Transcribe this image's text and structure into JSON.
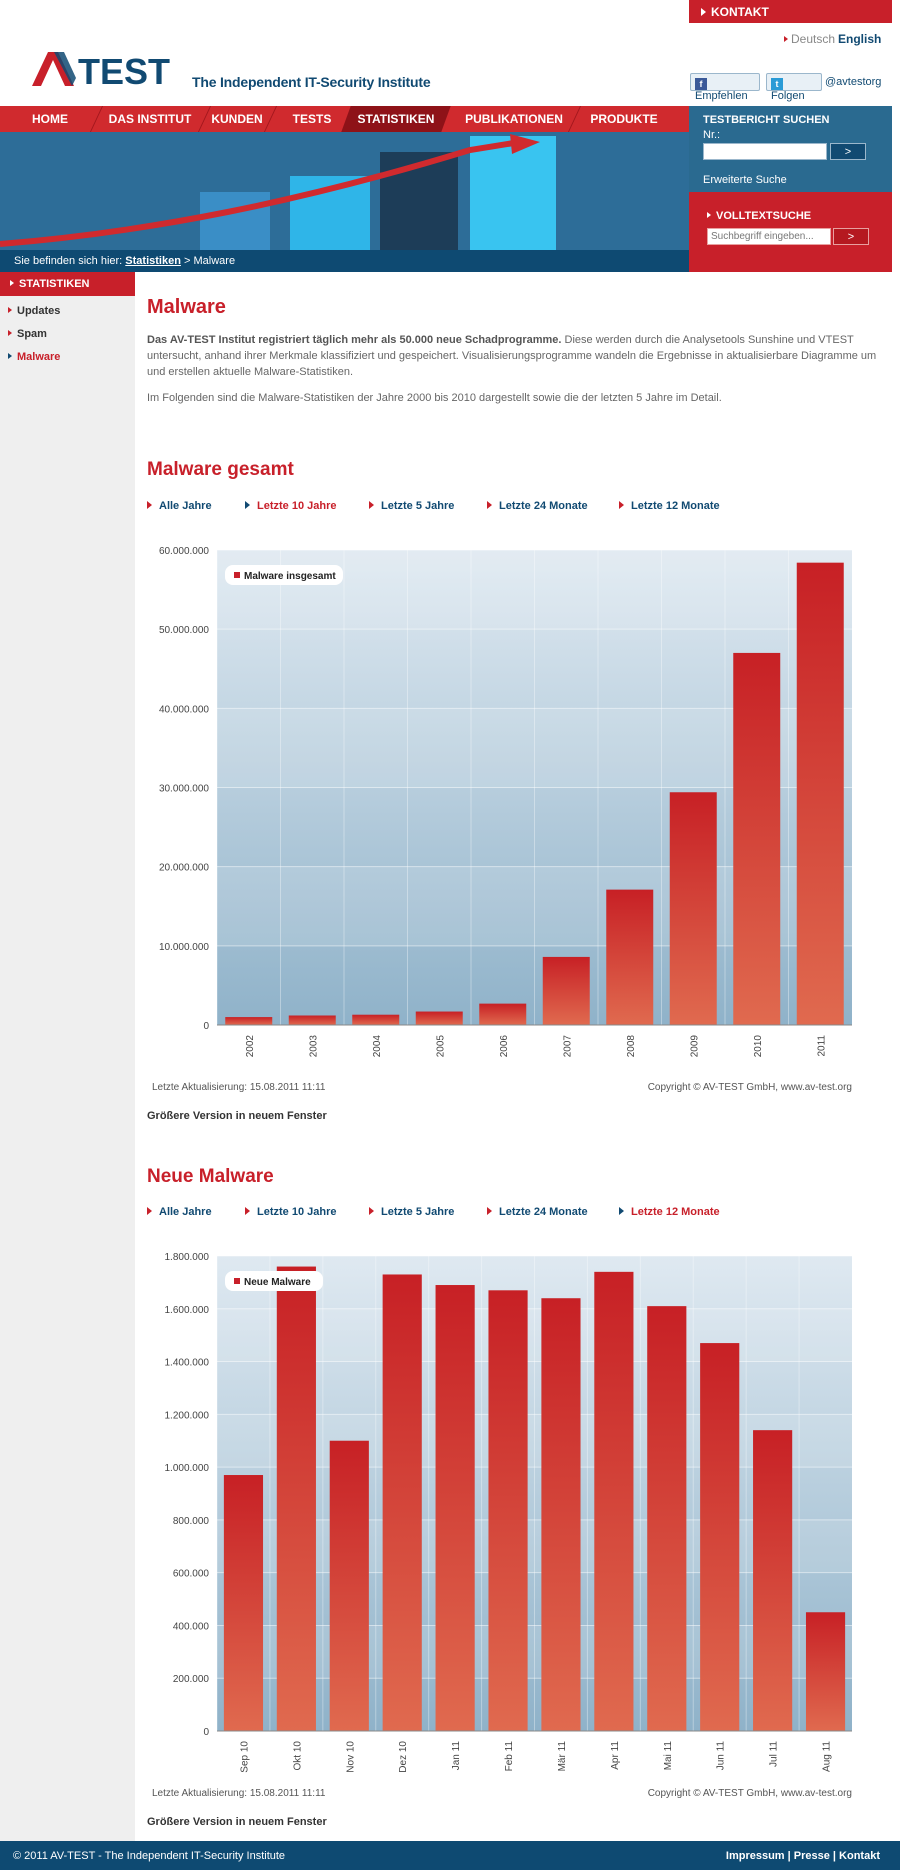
{
  "header": {
    "kontakt": "KONTAKT",
    "lang_de": "Deutsch",
    "lang_en": "English",
    "logo_text": "AV-TEST",
    "tagline": "The Independent IT-Security Institute",
    "facebook_label": "Empfehlen",
    "twitter_label": "Folgen",
    "twitter_handle": "@avtestorg"
  },
  "nav": {
    "items": [
      "HOME",
      "DAS INSTITUT",
      "KUNDEN",
      "TESTS",
      "STATISTIKEN",
      "PUBLIKATIONEN",
      "PRODUKTE"
    ],
    "active": "STATISTIKEN"
  },
  "breadcrumb": {
    "prefix": "Sie befinden sich hier:",
    "link": "Statistiken",
    "separator": ">",
    "current": "Malware"
  },
  "search_report": {
    "title": "TESTBERICHT SUCHEN",
    "nr_label": "Nr.:",
    "button": ">",
    "advanced": "Erweiterte Suche"
  },
  "search_fulltext": {
    "title": "VOLLTEXTSUCHE",
    "placeholder": "Suchbegriff eingeben...",
    "button": ">"
  },
  "sidebar": {
    "title": "STATISTIKEN",
    "items": [
      "Updates",
      "Spam",
      "Malware"
    ],
    "active": "Malware"
  },
  "main": {
    "title": "Malware",
    "intro_bold": "Das AV-TEST Institut registriert täglich mehr als 50.000 neue Schadprogramme.",
    "intro_rest": " Diese werden durch die Analysetools Sunshine und VTEST untersucht, anhand ihrer Merkmale klassifiziert und gespeichert. Visualisierungsprogramme wandeln die Ergebnisse in aktualisierbare Diagramme um und erstellen aktuelle Malware-Statistiken.",
    "intro2": "Im Folgenden sind die Malware-Statistiken der Jahre 2000 bis 2010 dargestellt sowie die der letzten 5 Jahre im Detail.",
    "section1_title": "Malware gesamt",
    "section1_ranges": [
      "Alle Jahre",
      "Letzte 10 Jahre",
      "Letzte 5 Jahre",
      "Letzte 24 Monate",
      "Letzte 12 Monate"
    ],
    "section1_selected": "Letzte 10 Jahre",
    "section2_title": "Neue Malware",
    "section2_ranges": [
      "Alle Jahre",
      "Letzte 10 Jahre",
      "Letzte 5 Jahre",
      "Letzte 24 Monate",
      "Letzte 12 Monate"
    ],
    "section2_selected": "Letzte 12 Monate",
    "last_update": "Letzte Aktualisierung: 15.08.2011 11:11",
    "copyright": "Copyright © AV-TEST GmbH, www.av-test.org",
    "bigger_version": "Größere Version in neuem Fenster"
  },
  "footer": {
    "copyright": "© 2011 AV-TEST - The Independent IT-Security Institute",
    "links": "Impressum | Presse | Kontakt"
  },
  "colors": {
    "brand_red": "#c8202a",
    "brand_blue": "#114a72"
  },
  "chart_data": [
    {
      "type": "bar",
      "legend": "Malware insgesamt",
      "categories": [
        "2002",
        "2003",
        "2004",
        "2005",
        "2006",
        "2007",
        "2008",
        "2009",
        "2010",
        "2011"
      ],
      "series": [
        {
          "name": "Malware insgesamt",
          "values": [
            1000000,
            1200000,
            1300000,
            1700000,
            2700000,
            8600000,
            17100000,
            29400000,
            47000000,
            58400000
          ]
        }
      ],
      "ylim": [
        0,
        60000000
      ],
      "yticks": [
        "0",
        "10.000.000",
        "20.000.000",
        "30.000.000",
        "40.000.000",
        "50.000.000",
        "60.000.000"
      ],
      "legend_position": "top-left"
    },
    {
      "type": "bar",
      "legend": "Neue Malware",
      "categories": [
        "Sep 10",
        "Okt 10",
        "Nov 10",
        "Dez 10",
        "Jan 11",
        "Feb 11",
        "Mär 11",
        "Apr 11",
        "Mai 11",
        "Jun 11",
        "Jul 11",
        "Aug 11"
      ],
      "series": [
        {
          "name": "Neue Malware",
          "values": [
            970000,
            1760000,
            1100000,
            1730000,
            1690000,
            1670000,
            1640000,
            1740000,
            1610000,
            1470000,
            1140000,
            450000
          ]
        }
      ],
      "ylim": [
        0,
        1800000
      ],
      "yticks": [
        "0",
        "200.000",
        "400.000",
        "600.000",
        "800.000",
        "1.000.000",
        "1.200.000",
        "1.400.000",
        "1.600.000",
        "1.800.000"
      ],
      "legend_position": "top-left"
    }
  ]
}
